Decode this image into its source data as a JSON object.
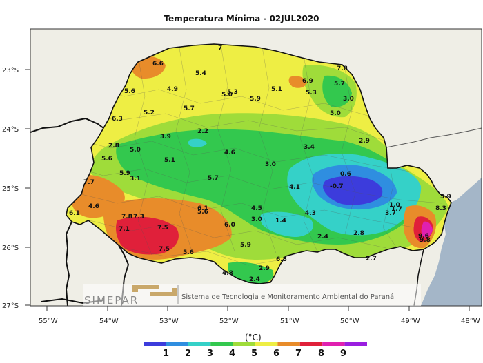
{
  "title": "Temperatura Mínima - 02JUL2020",
  "lat_labels": [
    "23°S",
    "24°S",
    "25°S",
    "26°S",
    "27°S"
  ],
  "lon_labels": [
    "55°W",
    "54°W",
    "53°W",
    "52°W",
    "51°W",
    "50°W",
    "49°W",
    "48°W"
  ],
  "values": [
    {
      "text": "6.6"
    },
    {
      "text": "5.4"
    },
    {
      "text": "7"
    },
    {
      "text": "5.6"
    },
    {
      "text": "4.9"
    },
    {
      "text": "5.0"
    },
    {
      "text": "5.3"
    },
    {
      "text": "5.1"
    },
    {
      "text": "6.9"
    },
    {
      "text": "7.8"
    },
    {
      "text": "5.7"
    },
    {
      "text": "5.3"
    },
    {
      "text": "5.9"
    },
    {
      "text": "3.0"
    },
    {
      "text": "5.2"
    },
    {
      "text": "5.7"
    },
    {
      "text": "5.0"
    },
    {
      "text": "6.3"
    },
    {
      "text": "2.2"
    },
    {
      "text": "3.9"
    },
    {
      "text": "2.8"
    },
    {
      "text": "5.0"
    },
    {
      "text": "3.4"
    },
    {
      "text": "2.9"
    },
    {
      "text": "4.6"
    },
    {
      "text": "5.6"
    },
    {
      "text": "5.1"
    },
    {
      "text": "3.0"
    },
    {
      "text": "0.6"
    },
    {
      "text": "5.9"
    },
    {
      "text": "3.1"
    },
    {
      "text": "5.7"
    },
    {
      "text": "-0.7"
    },
    {
      "text": "4.1"
    },
    {
      "text": "7.7"
    },
    {
      "text": "4.6"
    },
    {
      "text": "6.1"
    },
    {
      "text": "5.6"
    },
    {
      "text": "4.5"
    },
    {
      "text": "4.3"
    },
    {
      "text": "1.0"
    },
    {
      "text": "1.7"
    },
    {
      "text": "3.7"
    },
    {
      "text": "5.9"
    },
    {
      "text": "6.1"
    },
    {
      "text": "7.8"
    },
    {
      "text": "7.3"
    },
    {
      "text": "3.0"
    },
    {
      "text": "1.4"
    },
    {
      "text": "7.1"
    },
    {
      "text": "7.5"
    },
    {
      "text": "6.0"
    },
    {
      "text": "2.8"
    },
    {
      "text": "2.4"
    },
    {
      "text": "8.3"
    },
    {
      "text": "9.6"
    },
    {
      "text": "9.8"
    },
    {
      "text": "7.5"
    },
    {
      "text": "5.9"
    },
    {
      "text": "5.6"
    },
    {
      "text": "6.8"
    },
    {
      "text": "2.7"
    },
    {
      "text": "2.9"
    },
    {
      "text": "4.8"
    },
    {
      "text": "2.4"
    }
  ],
  "logo": {
    "name": "SIMEPAR",
    "subtitle": "Sistema de Tecnologia e Monitoramento Ambiental do Paraná"
  },
  "colorbar": {
    "unit": "(°C)",
    "labels": [
      "1",
      "2",
      "3",
      "4",
      "5",
      "6",
      "7",
      "8",
      "9"
    ],
    "colors": [
      "#3c3cdc",
      "#2f8ee0",
      "#35d1c8",
      "#33c84e",
      "#9fdc3a",
      "#eeee44",
      "#e88c2a",
      "#e0203a",
      "#e020b0",
      "#9a1ee0"
    ]
  },
  "colors": {
    "land_outside": "#efeee6",
    "ocean": "#a4b6c8"
  }
}
